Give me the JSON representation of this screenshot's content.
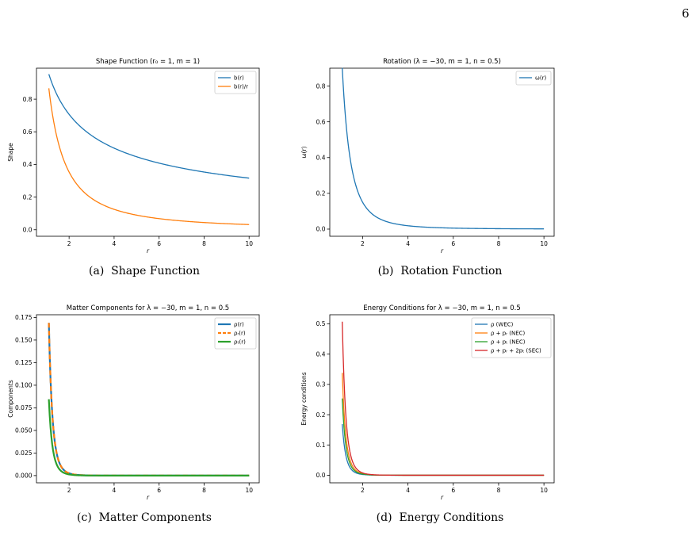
{
  "page_number": "6",
  "chart_data": [
    {
      "type": "line",
      "title": "Shape Function (r₀ = 1,  m = 1)",
      "xlabel": "r",
      "ylabel": "Shape",
      "xlim": [
        0.55,
        10.45
      ],
      "ylim": [
        -0.04,
        0.99
      ],
      "xticks": [
        2,
        4,
        6,
        8,
        10
      ],
      "yticks": [
        0.0,
        0.2,
        0.4,
        0.6,
        0.8
      ],
      "ytick_decimals": 1,
      "legend_position": "top-right",
      "caption": "(a)  Shape Function",
      "series": [
        {
          "name": "b(r)",
          "color": "#1f77b4",
          "width": 1.3,
          "dash": "",
          "curve": {
            "type": "power",
            "a": 1.0,
            "p": 0.5,
            "x0": 1.1,
            "x1": 10
          }
        },
        {
          "name": "b(r)/r",
          "color": "#ff7f0e",
          "width": 1.3,
          "dash": "",
          "curve": {
            "type": "power",
            "a": 1.0,
            "p": 1.5,
            "x0": 1.1,
            "x1": 10
          }
        }
      ]
    },
    {
      "type": "line",
      "title": "Rotation (λ = −30,  m = 1,  n = 0.5)",
      "xlabel": "r",
      "ylabel": "ω(r)",
      "xlim": [
        0.55,
        10.45
      ],
      "ylim": [
        -0.04,
        0.9
      ],
      "xticks": [
        2,
        4,
        6,
        8,
        10
      ],
      "yticks": [
        0.0,
        0.2,
        0.4,
        0.6,
        0.8
      ],
      "ytick_decimals": 1,
      "legend_position": "top-right",
      "caption": "(b)  Rotation Function",
      "series": [
        {
          "name": "ω(r)",
          "color": "#1f77b4",
          "width": 1.3,
          "dash": "",
          "curve": {
            "type": "power",
            "a": 1.2,
            "p": 3.0,
            "x0": 1.1,
            "x1": 10
          }
        }
      ]
    },
    {
      "type": "line",
      "title": "Matter Components for λ = −30,  m = 1,  n = 0.5",
      "xlabel": "r",
      "ylabel": "Components",
      "xlim": [
        0.55,
        10.45
      ],
      "ylim": [
        -0.008,
        0.178
      ],
      "xticks": [
        2,
        4,
        6,
        8,
        10
      ],
      "yticks": [
        0.0,
        0.025,
        0.05,
        0.075,
        0.1,
        0.125,
        0.15,
        0.175
      ],
      "ytick_decimals": 3,
      "legend_position": "top-right",
      "caption": "(c)  Matter Components",
      "series": [
        {
          "name": "ρ(r)",
          "color": "#1f77b4",
          "width": 2.2,
          "dash": "",
          "curve": {
            "type": "power",
            "a": 0.3294,
            "p": 7.0,
            "x0": 1.1,
            "x1": 10
          }
        },
        {
          "name": "ρᵣ(r)",
          "color": "#ff7f0e",
          "width": 2.2,
          "dash": "6,4",
          "curve": {
            "type": "power",
            "a": 0.3294,
            "p": 7.0,
            "x0": 1.1,
            "x1": 10
          }
        },
        {
          "name": "ρₜ(r)",
          "color": "#2ca02c",
          "width": 2.2,
          "dash": "",
          "curve": {
            "type": "power",
            "a": 0.1647,
            "p": 7.0,
            "x0": 1.1,
            "x1": 10
          }
        }
      ]
    },
    {
      "type": "line",
      "title": "Energy Conditions for λ = −30,  m = 1,  n = 0.5",
      "xlabel": "r",
      "ylabel": "Energy conditions",
      "xlim": [
        0.55,
        10.45
      ],
      "ylim": [
        -0.025,
        0.53
      ],
      "xticks": [
        2,
        4,
        6,
        8,
        10
      ],
      "yticks": [
        0.0,
        0.1,
        0.2,
        0.3,
        0.4,
        0.5
      ],
      "ytick_decimals": 1,
      "legend_position": "top-right",
      "caption": "(d)  Energy Conditions",
      "series": [
        {
          "name": "ρ (WEC)",
          "color": "#1f77b4",
          "width": 1.3,
          "dash": "",
          "curve": {
            "type": "power",
            "a": 0.3294,
            "p": 7.0,
            "x0": 1.1,
            "x1": 10
          }
        },
        {
          "name": "ρ + pᵣ (NEC)",
          "color": "#ff7f0e",
          "width": 1.3,
          "dash": "",
          "curve": {
            "type": "power",
            "a": 0.6588,
            "p": 7.0,
            "x0": 1.1,
            "x1": 10
          }
        },
        {
          "name": "ρ + pₜ (NEC)",
          "color": "#2ca02c",
          "width": 1.3,
          "dash": "",
          "curve": {
            "type": "power",
            "a": 0.4941,
            "p": 7.0,
            "x0": 1.1,
            "x1": 10
          }
        },
        {
          "name": "ρ + pᵣ + 2pₜ (SEC)",
          "color": "#d62728",
          "width": 1.3,
          "dash": "",
          "curve": {
            "type": "power",
            "a": 0.9882,
            "p": 7.0,
            "x0": 1.1,
            "x1": 10
          }
        }
      ]
    }
  ]
}
